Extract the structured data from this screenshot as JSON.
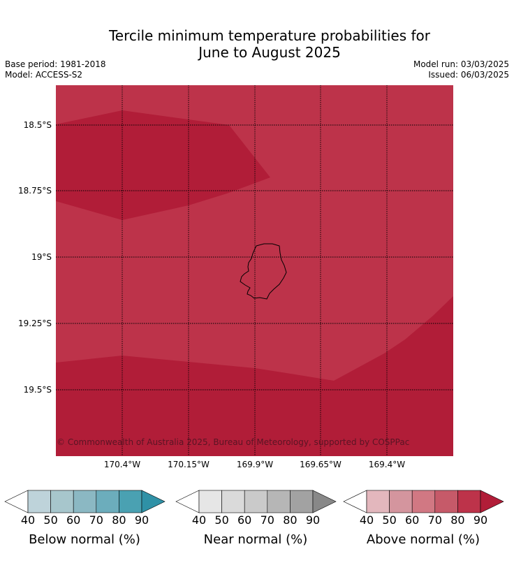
{
  "title_line1": "Tercile minimum temperature probabilities for",
  "title_line2": "June to August 2025",
  "base_period": "Base period: 1981-2018",
  "model": "Model: ACCESS-S2",
  "model_run": "Model run: 03/03/2025",
  "issued": "Issued: 06/03/2025",
  "copyright": "© Commonwealth of Australia 2025, Bureau of Meteorology, supported by COSPPac",
  "map": {
    "latitude_labels": [
      "18.5°S",
      "18.75°S",
      "19°S",
      "19.25°S",
      "19.5°S"
    ],
    "longitude_labels": [
      "170.4°W",
      "170.15°W",
      "169.9°W",
      "169.65°W",
      "169.4°W"
    ],
    "colors": {
      "above_80": "#bd334a",
      "above_90": "#b11d38",
      "coastline": "#000000"
    }
  },
  "colorbars": [
    {
      "label": "Below normal (%)",
      "ticks": [
        "40",
        "50",
        "60",
        "70",
        "80",
        "90"
      ],
      "colors": [
        "#ffffff",
        "#bed3da",
        "#a7c6cc",
        "#8bb8c3",
        "#6cadbc",
        "#4aa1b2",
        "#2f91a6"
      ]
    },
    {
      "label": "Near normal (%)",
      "ticks": [
        "40",
        "50",
        "60",
        "70",
        "80",
        "90"
      ],
      "colors": [
        "#ffffff",
        "#e6e6e6",
        "#dadada",
        "#cacaca",
        "#b6b6b6",
        "#a2a2a2",
        "#888888"
      ]
    },
    {
      "label": "Above normal (%)",
      "ticks": [
        "40",
        "50",
        "60",
        "70",
        "80",
        "90"
      ],
      "colors": [
        "#ffffff",
        "#e3b7bd",
        "#d4959e",
        "#d17883",
        "#c65a69",
        "#bd334a",
        "#b11d38"
      ]
    }
  ]
}
